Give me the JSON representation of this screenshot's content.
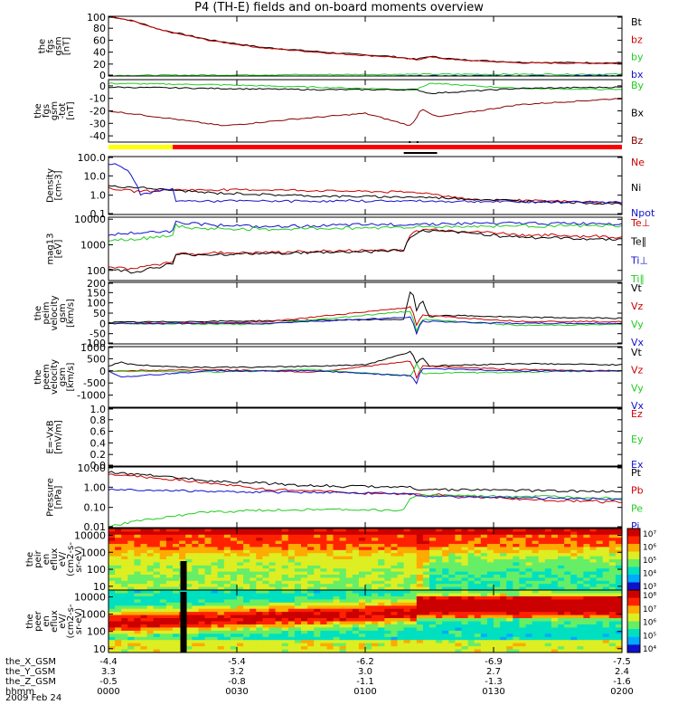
{
  "title": "P4 (TH-E) fields and on-board moments overview",
  "date": "2009 Feb 24",
  "colors": {
    "black": "#000000",
    "red": "#cc0000",
    "darkred": "#880000",
    "green": "#22cc22",
    "blue": "#1111cc",
    "yellow": "#ffff00",
    "barred": "#ff0000"
  },
  "chart_data": [
    {
      "type": "line",
      "id": "fgs-gsm",
      "ylabel_lines": [
        "the",
        "fgs",
        "gsm",
        "[nT]"
      ],
      "ylim": [
        0,
        100
      ],
      "yticks": [
        "100",
        "80",
        "60",
        "40",
        "20",
        "0"
      ],
      "legend": [
        {
          "label": "Bt",
          "color": "#000000"
        },
        {
          "label": "bz",
          "color": "#cc0000"
        },
        {
          "label": "by",
          "color": "#22cc22"
        },
        {
          "label": "bx",
          "color": "#1111cc"
        }
      ],
      "series": [
        {
          "name": "Bt",
          "color": "#000000",
          "x": [
            0,
            10,
            20,
            40,
            60,
            90,
            110,
            120,
            125,
            135,
            160,
            200
          ],
          "y": [
            100,
            92,
            78,
            60,
            48,
            38,
            33,
            28,
            33,
            28,
            23,
            22
          ]
        },
        {
          "name": "bz",
          "color": "#cc0000",
          "x": [
            0,
            10,
            20,
            40,
            60,
            90,
            110,
            120,
            125,
            135,
            160,
            200
          ],
          "y": [
            100,
            91,
            77,
            59,
            47,
            37,
            32,
            27,
            32,
            27,
            22,
            21
          ]
        },
        {
          "name": "by",
          "color": "#22cc22",
          "x": [
            0,
            60,
            120,
            200
          ],
          "y": [
            1,
            2,
            3,
            3
          ]
        },
        {
          "name": "bx",
          "color": "#1111cc",
          "x": [
            0,
            60,
            120,
            200
          ],
          "y": [
            -3,
            -2,
            0,
            1
          ]
        }
      ]
    },
    {
      "type": "line",
      "id": "fgs-gse",
      "ylabel_lines": [
        "the",
        "fgs",
        "gsm",
        "-tot",
        "[nT]"
      ],
      "ylim": [
        -45,
        5
      ],
      "yticks": [
        "0",
        "-10",
        "-20",
        "-30",
        "-40"
      ],
      "legend": [
        {
          "label": "By",
          "color": "#22cc22"
        },
        {
          "label": "Bx",
          "color": "#000000"
        },
        {
          "label": "Bz",
          "color": "#880000"
        }
      ],
      "series": [
        {
          "name": "By",
          "color": "#22cc22",
          "x": [
            0,
            40,
            80,
            120,
            125,
            160,
            200
          ],
          "y": [
            2,
            1,
            -1,
            -3,
            2,
            -2,
            -3
          ]
        },
        {
          "name": "Bx",
          "color": "#000000",
          "x": [
            0,
            40,
            80,
            120,
            125,
            160,
            200
          ],
          "y": [
            -1,
            -2,
            -3,
            -3,
            -6,
            -2,
            -1
          ]
        },
        {
          "name": "Bz",
          "color": "#880000",
          "x": [
            0,
            20,
            45,
            70,
            100,
            118,
            122,
            128,
            160,
            200
          ],
          "y": [
            -20,
            -25,
            -32,
            -27,
            -22,
            -32,
            -18,
            -25,
            -15,
            -10
          ]
        }
      ]
    },
    {
      "type": "line",
      "id": "density",
      "ylabel_lines": [
        "Density",
        "[cm-3]"
      ],
      "yscale": "log",
      "ylim": [
        0.1,
        100
      ],
      "yticks": [
        "100.0",
        "10.0",
        "1.0",
        "0.1"
      ],
      "legend": [
        {
          "label": "Ne",
          "color": "#cc0000"
        },
        {
          "label": "Ni",
          "color": "#000000"
        },
        {
          "label": "Npot",
          "color": "#1111cc"
        }
      ],
      "series": [
        {
          "name": "Ne",
          "color": "#cc0000",
          "x": [
            0,
            10,
            20,
            30,
            60,
            120,
            140,
            200
          ],
          "y": [
            2.2,
            1.6,
            1.8,
            1.9,
            1.9,
            1.4,
            0.6,
            0.4
          ]
        },
        {
          "name": "Ni",
          "color": "#000000",
          "x": [
            0,
            10,
            20,
            40,
            80,
            120,
            160,
            200
          ],
          "y": [
            3.0,
            2.6,
            2.0,
            1.3,
            0.9,
            0.8,
            0.5,
            0.35
          ]
        },
        {
          "name": "Npot",
          "color": "#1111cc",
          "x": [
            3,
            10,
            12,
            20,
            25,
            26,
            60,
            120,
            160,
            200
          ],
          "y": [
            40,
            6,
            1.0,
            1.6,
            2.2,
            0.5,
            0.5,
            0.5,
            0.45,
            0.45
          ]
        }
      ]
    },
    {
      "type": "line",
      "id": "temperature",
      "ylabel_lines": [
        "mag13",
        "[eV]"
      ],
      "yscale": "log",
      "ylim": [
        40,
        12000
      ],
      "yticks": [
        "10000",
        "1000",
        "100"
      ],
      "legend": [
        {
          "label": "Te⊥",
          "color": "#cc0000"
        },
        {
          "label": "Te∥",
          "color": "#000000"
        },
        {
          "label": "Ti⊥",
          "color": "#1111cc"
        },
        {
          "label": "Ti∥",
          "color": "#22cc22"
        }
      ],
      "series": [
        {
          "name": "Te⊥",
          "color": "#cc0000",
          "x": [
            0,
            10,
            20,
            25,
            26,
            60,
            100,
            115,
            120,
            125,
            160,
            200
          ],
          "y": [
            150,
            110,
            180,
            200,
            450,
            500,
            600,
            650,
            3500,
            4000,
            2500,
            2000
          ]
        },
        {
          "name": "Te∥",
          "color": "#000000",
          "x": [
            0,
            10,
            20,
            25,
            26,
            60,
            100,
            115,
            120,
            125,
            160,
            200
          ],
          "y": [
            120,
            80,
            140,
            180,
            400,
            450,
            550,
            600,
            3000,
            3500,
            2000,
            1600
          ]
        },
        {
          "name": "Ti⊥",
          "color": "#1111cc",
          "x": [
            0,
            15,
            25,
            26,
            30,
            60,
            120,
            160,
            200
          ],
          "y": [
            2500,
            3000,
            3500,
            9000,
            7000,
            5000,
            6500,
            7000,
            7000
          ]
        },
        {
          "name": "Ti∥",
          "color": "#22cc22",
          "x": [
            0,
            15,
            25,
            26,
            30,
            60,
            120,
            160,
            200
          ],
          "y": [
            1500,
            1800,
            2500,
            6000,
            4500,
            4000,
            5000,
            5500,
            5500
          ]
        }
      ]
    },
    {
      "type": "line",
      "id": "peim-velocity",
      "ylabel_lines": [
        "the",
        "peim",
        "velocity",
        "gsm",
        "[km/s]"
      ],
      "ylim": [
        -100,
        200
      ],
      "yticks": [
        "200",
        "150",
        "100",
        "50",
        "0",
        "-50",
        "-100"
      ],
      "legend": [
        {
          "label": "Vt",
          "color": "#000000"
        },
        {
          "label": "Vz",
          "color": "#cc0000"
        },
        {
          "label": "Vy",
          "color": "#22cc22"
        },
        {
          "label": "Vx",
          "color": "#1111cc"
        }
      ],
      "series": [
        {
          "name": "Vt",
          "color": "#000000",
          "x": [
            0,
            40,
            80,
            115,
            118,
            120,
            122,
            125,
            130,
            160,
            200
          ],
          "y": [
            5,
            10,
            15,
            20,
            180,
            60,
            120,
            30,
            40,
            30,
            25
          ]
        },
        {
          "name": "Vz",
          "color": "#cc0000",
          "x": [
            0,
            60,
            118,
            120,
            122,
            160,
            200
          ],
          "y": [
            0,
            5,
            80,
            -10,
            40,
            10,
            8
          ]
        },
        {
          "name": "Vy",
          "color": "#22cc22",
          "x": [
            0,
            60,
            118,
            120,
            122,
            160,
            200
          ],
          "y": [
            0,
            -5,
            60,
            -40,
            20,
            -10,
            -5
          ]
        },
        {
          "name": "Vx",
          "color": "#1111cc",
          "x": [
            0,
            60,
            118,
            120,
            122,
            160,
            200
          ],
          "y": [
            0,
            0,
            30,
            -50,
            10,
            0,
            0
          ]
        }
      ]
    },
    {
      "type": "line",
      "id": "peem-velocity",
      "ylabel_lines": [
        "the",
        "peem",
        "velocity",
        "gsm",
        "[km/s]"
      ],
      "ylim": [
        -1500,
        1000
      ],
      "yticks": [
        "1000",
        "500",
        "0",
        "-500",
        "-1000"
      ],
      "legend": [
        {
          "label": "Vt",
          "color": "#000000"
        },
        {
          "label": "Vz",
          "color": "#cc0000"
        },
        {
          "label": "Vy",
          "color": "#22cc22"
        },
        {
          "label": "Vx",
          "color": "#1111cc"
        }
      ],
      "series": [
        {
          "name": "Vt",
          "color": "#000000",
          "x": [
            0,
            5,
            10,
            30,
            60,
            100,
            118,
            120,
            122,
            125,
            160,
            200
          ],
          "y": [
            200,
            350,
            250,
            150,
            150,
            250,
            800,
            300,
            600,
            200,
            300,
            250
          ]
        },
        {
          "name": "Vz",
          "color": "#cc0000",
          "x": [
            0,
            40,
            80,
            118,
            120,
            122,
            160,
            200
          ],
          "y": [
            0,
            50,
            -50,
            400,
            -300,
            200,
            50,
            0
          ]
        },
        {
          "name": "Vy",
          "color": "#22cc22",
          "x": [
            0,
            40,
            80,
            118,
            120,
            122,
            160,
            200
          ],
          "y": [
            0,
            -50,
            50,
            -200,
            300,
            -100,
            -50,
            0
          ]
        },
        {
          "name": "Vx",
          "color": "#1111cc",
          "x": [
            0,
            5,
            40,
            80,
            118,
            120,
            122,
            160,
            200
          ],
          "y": [
            0,
            -250,
            0,
            0,
            -200,
            -500,
            100,
            0,
            0
          ]
        }
      ]
    },
    {
      "type": "line",
      "id": "efield",
      "ylabel_lines": [
        "E=-VxB",
        "[mV/m]"
      ],
      "ylim": [
        0,
        1
      ],
      "yticks": [
        "1.0",
        "0.8",
        "0.6",
        "0.4",
        "0.2",
        "0.0"
      ],
      "legend": [
        {
          "label": "Ez",
          "color": "#cc0000"
        },
        {
          "label": "Ey",
          "color": "#22cc22"
        },
        {
          "label": "Ex",
          "color": "#1111cc"
        }
      ],
      "series": []
    },
    {
      "type": "line",
      "id": "pressure",
      "ylabel_lines": [
        "Pressure",
        "[nPa]"
      ],
      "yscale": "log",
      "ylim": [
        0.01,
        10
      ],
      "yticks": [
        "10.00",
        "1.00",
        "0.10",
        "0.01"
      ],
      "legend": [
        {
          "label": "Pt",
          "color": "#000000"
        },
        {
          "label": "Pb",
          "color": "#cc0000"
        },
        {
          "label": "Pe",
          "color": "#22cc22"
        },
        {
          "label": "Pi",
          "color": "#1111cc"
        }
      ],
      "series": [
        {
          "name": "Pt",
          "color": "#000000",
          "x": [
            0,
            20,
            40,
            80,
            118,
            120,
            160,
            200
          ],
          "y": [
            5.5,
            3.5,
            2.0,
            1.2,
            1.0,
            0.8,
            0.7,
            0.6
          ]
        },
        {
          "name": "Pb",
          "color": "#cc0000",
          "x": [
            0,
            20,
            40,
            60,
            100,
            118,
            120,
            160,
            200
          ],
          "y": [
            4.5,
            2.8,
            1.5,
            0.8,
            0.5,
            0.45,
            0.45,
            0.25,
            0.18
          ]
        },
        {
          "name": "Pe",
          "color": "#22cc22",
          "x": [
            0,
            5,
            20,
            40,
            80,
            115,
            118,
            120,
            160,
            200
          ],
          "y": [
            0.01,
            0.015,
            0.03,
            0.06,
            0.08,
            0.07,
            0.3,
            0.4,
            0.35,
            0.3
          ]
        },
        {
          "name": "Pi",
          "color": "#1111cc",
          "x": [
            0,
            20,
            40,
            80,
            118,
            120,
            160,
            200
          ],
          "y": [
            0.8,
            0.7,
            0.6,
            0.55,
            0.5,
            0.35,
            0.3,
            0.25
          ]
        }
      ]
    },
    {
      "type": "heatmap",
      "id": "peir-eflux",
      "ylabel_lines": [
        "the",
        "peir",
        "en",
        "eflux",
        "eV/",
        "(cm2-s-",
        "sr-eV)"
      ],
      "yscale": "log",
      "ylim": [
        6,
        25000
      ],
      "yticks": [
        "10000",
        "1000",
        "100",
        "10"
      ],
      "colorbar": {
        "labels": [
          "10⁷",
          "10⁶",
          "10⁵",
          "10⁴",
          "10³"
        ]
      }
    },
    {
      "type": "heatmap",
      "id": "peer-eflux",
      "ylabel_lines": [
        "the",
        "peer",
        "en",
        "eflux",
        "eV/",
        "(cm2-s-",
        "sr-eV)"
      ],
      "yscale": "log",
      "ylim": [
        6,
        25000
      ],
      "yticks": [
        "10000",
        "1000",
        "100",
        "10"
      ],
      "colorbar": {
        "labels": [
          "10⁸",
          "10⁷",
          "10⁶",
          "10⁵",
          "10⁴"
        ]
      }
    }
  ],
  "xaxis": {
    "rows": [
      {
        "label": "the_X_GSM",
        "values": [
          "-4.4",
          "-5.4",
          "-6.2",
          "-6.9",
          "-7.5"
        ]
      },
      {
        "label": "the_Y_GSM",
        "values": [
          "3.3",
          "3.2",
          "3.0",
          "2.7",
          "2.4"
        ]
      },
      {
        "label": "the_Z_GSM",
        "values": [
          "-0.5",
          "-0.8",
          "-1.1",
          "-1.3",
          "-1.6"
        ]
      },
      {
        "label": "hhmm",
        "values": [
          "0000",
          "0030",
          "0100",
          "0130",
          "0200"
        ]
      }
    ]
  }
}
